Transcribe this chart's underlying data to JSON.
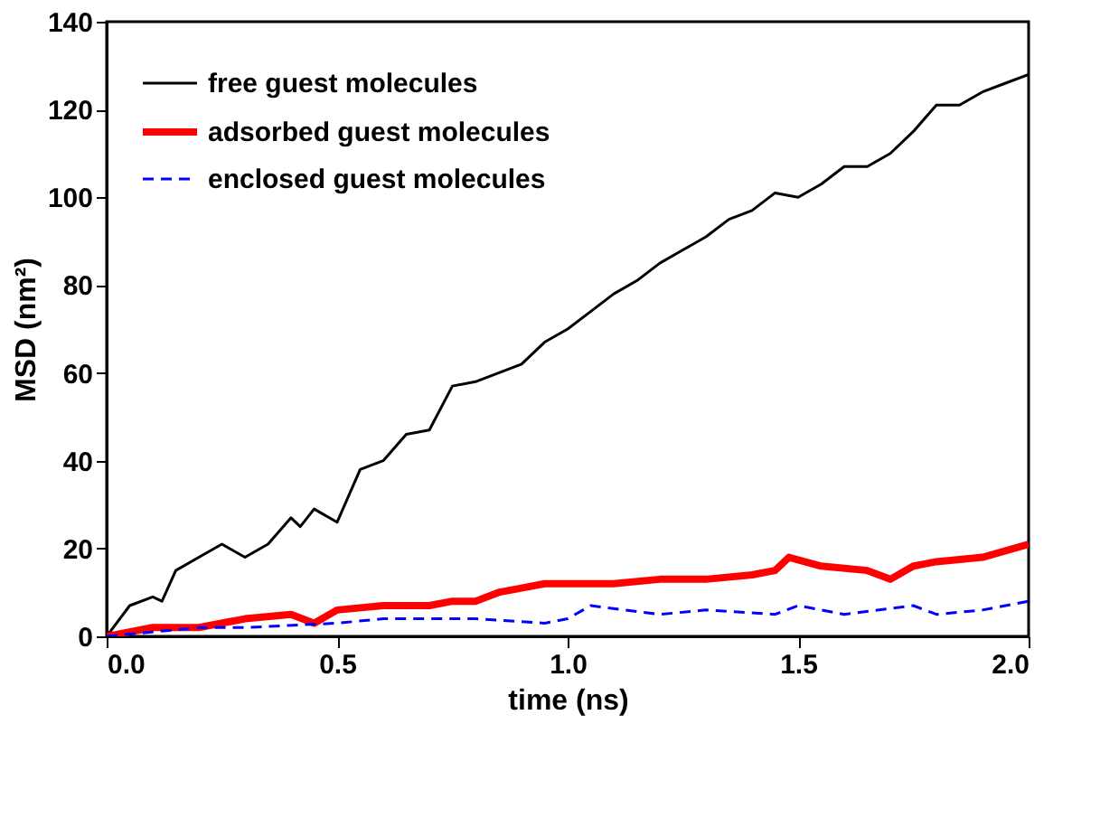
{
  "chart_data": {
    "type": "line",
    "xlabel": "time (ns)",
    "ylabel": "MSD (nm²)",
    "xlim": [
      0,
      2.0
    ],
    "xticks": [
      {
        "value": 0,
        "label": "0.0"
      },
      {
        "value": 0.5,
        "label": "0.5"
      },
      {
        "value": 1,
        "label": "1.0"
      },
      {
        "value": 1.5,
        "label": "1.5"
      },
      {
        "value": 2,
        "label": "2.0"
      }
    ],
    "ylim": [
      0,
      140
    ],
    "yticks": [
      0,
      20,
      40,
      60,
      80,
      100,
      120,
      140
    ],
    "grid": false,
    "legend": "top left",
    "series": [
      {
        "name": "free guest molecules",
        "color": "#000000",
        "line_style": "solid",
        "x": [
          0,
          0.05,
          0.1,
          0.12,
          0.15,
          0.2,
          0.25,
          0.3,
          0.35,
          0.4,
          0.42,
          0.45,
          0.5,
          0.55,
          0.6,
          0.65,
          0.7,
          0.75,
          0.8,
          0.85,
          0.9,
          0.95,
          1.0,
          1.05,
          1.1,
          1.15,
          1.2,
          1.25,
          1.3,
          1.35,
          1.4,
          1.45,
          1.5,
          1.55,
          1.6,
          1.65,
          1.7,
          1.75,
          1.8,
          1.85,
          1.9,
          1.95,
          2.0
        ],
        "values": [
          0,
          7,
          9,
          8,
          15,
          18,
          21,
          18,
          21,
          27,
          25,
          29,
          26,
          38,
          40,
          46,
          47,
          57,
          58,
          60,
          62,
          67,
          70,
          74,
          78,
          81,
          85,
          88,
          91,
          95,
          97,
          101,
          100,
          103,
          107,
          107,
          110,
          115,
          121,
          121,
          124,
          126,
          128
        ]
      },
      {
        "name": "adsorbed guest molecules",
        "color": "#ff0000",
        "line_style": "solid",
        "x": [
          0,
          0.1,
          0.2,
          0.3,
          0.4,
          0.45,
          0.5,
          0.6,
          0.7,
          0.75,
          0.8,
          0.85,
          0.9,
          0.95,
          1.0,
          1.1,
          1.2,
          1.3,
          1.4,
          1.45,
          1.48,
          1.55,
          1.65,
          1.7,
          1.75,
          1.8,
          1.9,
          2.0
        ],
        "values": [
          0,
          2,
          2,
          4,
          5,
          3,
          6,
          7,
          7,
          8,
          8,
          10,
          11,
          12,
          12,
          12,
          13,
          13,
          14,
          15,
          18,
          16,
          15,
          13,
          16,
          17,
          18,
          21
        ]
      },
      {
        "name": "enclosed guest molecules",
        "color": "#0000ff",
        "line_style": "dashed",
        "x": [
          0,
          0.2,
          0.3,
          0.5,
          0.6,
          0.8,
          0.95,
          1.0,
          1.05,
          1.2,
          1.3,
          1.45,
          1.5,
          1.6,
          1.75,
          1.8,
          1.9,
          2.0
        ],
        "values": [
          0,
          2,
          2,
          3,
          4,
          4,
          3,
          4,
          7,
          5,
          6,
          5,
          7,
          5,
          7,
          5,
          6,
          8
        ]
      }
    ]
  }
}
